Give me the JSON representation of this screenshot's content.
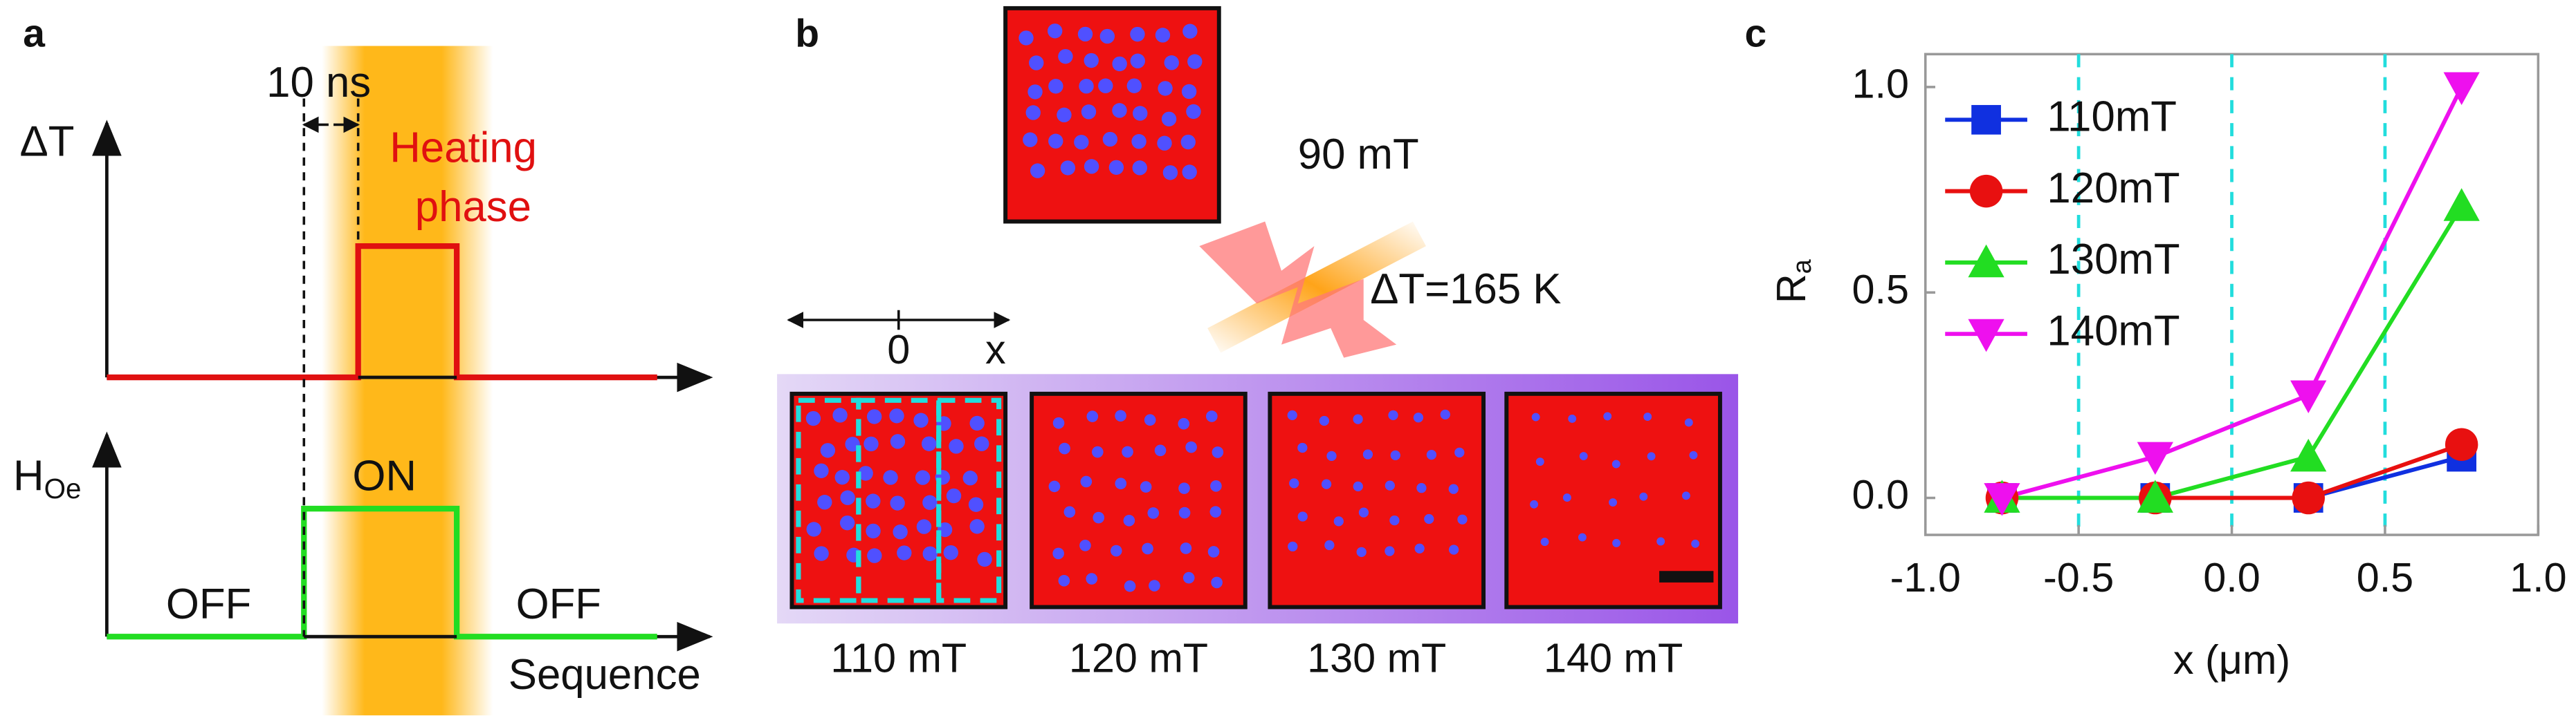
{
  "panel_a": {
    "label": "a",
    "pulse_width": "10 ns",
    "temperature_axis": "ΔT",
    "heating_line1": "Heating",
    "heating_line2": "phase",
    "field_axis": "H",
    "field_axis_sub": "Oe",
    "on": "ON",
    "off_before": "OFF",
    "off_after": "OFF",
    "time_axis": "Sequence"
  },
  "panel_b": {
    "label": "b",
    "initial_field": "90 mT",
    "heating": "ΔT=165 K",
    "origin": "0",
    "x": "x",
    "fields": [
      "110 mT",
      "120 mT",
      "130 mT",
      "140 mT"
    ]
  },
  "chart_data": {
    "type": "line",
    "label": "c",
    "xlabel": "x (μm)",
    "ylabel": "R",
    "ylabel_sub": "a",
    "x": [
      -0.75,
      -0.25,
      0.25,
      0.75
    ],
    "series": [
      {
        "name": "110mT",
        "color": "#1030e0",
        "marker": "square",
        "values": [
          0,
          0,
          0,
          0.1
        ]
      },
      {
        "name": "120mT",
        "color": "#e81010",
        "marker": "circle",
        "values": [
          0,
          0,
          0,
          0.13
        ]
      },
      {
        "name": "130mT",
        "color": "#22dd22",
        "marker": "triangle-up",
        "values": [
          0,
          0,
          0.1,
          0.71
        ]
      },
      {
        "name": "140mT",
        "color": "#ee10ee",
        "marker": "triangle-down",
        "values": [
          0,
          0.1,
          0.25,
          1.0
        ]
      }
    ],
    "xlim": [
      -1,
      1
    ],
    "xticks": [
      {
        "value": -1,
        "label": "-1.0"
      },
      -0.5,
      {
        "value": 0,
        "label": "0.0"
      },
      0.5,
      {
        "value": 1,
        "label": "1.0"
      }
    ],
    "ylim": [
      -0.09,
      1.08
    ],
    "yticks": [
      {
        "value": 0,
        "label": "0.0"
      },
      0.5,
      {
        "value": 1,
        "label": "1.0"
      }
    ],
    "vlines": [
      -0.5,
      0,
      0.5
    ],
    "vline_color": "#22dddd",
    "legend": "upper left"
  }
}
